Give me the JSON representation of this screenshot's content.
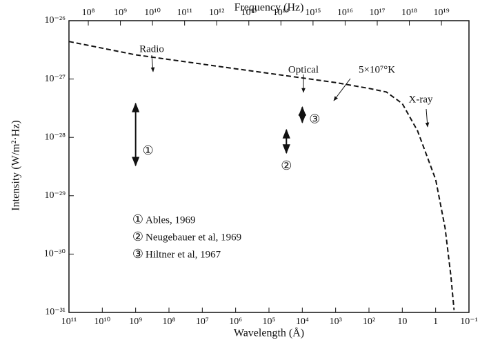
{
  "chart_data": {
    "type": "line",
    "x_axis_label": "Wavelength (Å)",
    "x2_axis_label": "Frequency (Hz)",
    "y_axis_label": "Intensity (W/m²·Hz)",
    "xscale": "log",
    "yscale": "log",
    "x2scale": "log",
    "xlim": [
      100000000000.0,
      0.1
    ],
    "xticks": [
      {
        "value": 100000000000.0,
        "label": "10¹¹"
      },
      {
        "value": 10000000000.0,
        "label": "10¹⁰"
      },
      {
        "value": 1000000000.0,
        "label": "10⁹"
      },
      {
        "value": 100000000.0,
        "label": "10⁸"
      },
      {
        "value": 10000000.0,
        "label": "10⁷"
      },
      {
        "value": 1000000.0,
        "label": "10⁶"
      },
      {
        "value": 100000.0,
        "label": "10⁵"
      },
      {
        "value": 10000.0,
        "label": "10⁴"
      },
      {
        "value": 1000.0,
        "label": "10³"
      },
      {
        "value": 100,
        "label": "10²"
      },
      10,
      1,
      {
        "value": 0.1,
        "label": "10⁻¹"
      }
    ],
    "x2lim": [
      25000000.0,
      7.2e+19
    ],
    "x2ticks": [
      {
        "value": 100000000.0,
        "label": "10⁸"
      },
      {
        "value": 1000000000.0,
        "label": "10⁹"
      },
      {
        "value": 10000000000.0,
        "label": "10¹⁰"
      },
      {
        "value": 100000000000.0,
        "label": "10¹¹"
      },
      {
        "value": 1000000000000.0,
        "label": "10¹²"
      },
      {
        "value": 10000000000000.0,
        "label": "10¹³"
      },
      {
        "value": 100000000000000.0,
        "label": "10¹⁴"
      },
      {
        "value": 1000000000000000.0,
        "label": "10¹⁵"
      },
      {
        "value": 1e+16,
        "label": "10¹⁶"
      },
      {
        "value": 1e+17,
        "label": "10¹⁷"
      },
      {
        "value": 1e+18,
        "label": "10¹⁸"
      },
      {
        "value": 1e+19,
        "label": "10¹⁹"
      }
    ],
    "ylim": [
      1e-31,
      1e-26
    ],
    "yticks": [
      {
        "value": 1e-31,
        "label": "10⁻³¹"
      },
      {
        "value": 1e-30,
        "label": "10⁻³⁰"
      },
      {
        "value": 1e-29,
        "label": "10⁻²⁹"
      },
      {
        "value": 1e-28,
        "label": "10⁻²⁸"
      },
      {
        "value": 1e-27,
        "label": "10⁻²⁷"
      },
      {
        "value": 1e-26,
        "label": "10⁻²⁶"
      }
    ],
    "grid": false,
    "series": [
      {
        "color": "#111111",
        "dash": true,
        "x": [
          100000000000.0,
          1000000000.0,
          1000000.0,
          1000.0,
          100,
          30,
          10,
          3.5,
          1,
          0.52,
          0.35,
          0.28
        ],
        "values": [
          4.4e-27,
          2.6e-27,
          1.5e-27,
          8.7e-28,
          6.9e-28,
          6e-28,
          3.8e-28,
          1.3e-28,
          1.9e-29,
          2.8e-30,
          4.3e-31,
          1.1e-31
        ]
      }
    ],
    "measurements": [
      {
        "marker": "①",
        "name": "Ables, 1969",
        "x": 1000000000.0,
        "high": 3.8e-28,
        "low": 3.3e-29
      },
      {
        "marker": "②",
        "name": "Neugebauer et al, 1969",
        "x": 30000.0,
        "high": 1.35e-28,
        "low": 5.4e-29
      },
      {
        "marker": "③",
        "name": "Hiltner et al, 1967",
        "x": 10000.0,
        "high": 3.3e-28,
        "low": 1.8e-28
      }
    ],
    "annotations": [
      "Radio",
      "Optical",
      "5×10⁷°K",
      "X-ray"
    ]
  }
}
